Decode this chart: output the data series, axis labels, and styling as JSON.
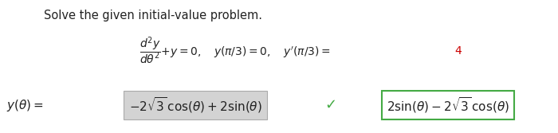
{
  "bg_color": "#ffffff",
  "title_text": "Solve the given initial-value problem.",
  "title_color": "#222222",
  "ode_4_color": "#cc0000",
  "answer_box_facecolor": "#d3d3d3",
  "answer_box_edgecolor": "#aaaaaa",
  "checkmark_color": "#44aa44",
  "alt_box_edgecolor": "#44aa44",
  "alt_box_facecolor": "#ffffff",
  "fontsize_title": 10.5,
  "fontsize_ode": 10,
  "fontsize_answer": 11
}
